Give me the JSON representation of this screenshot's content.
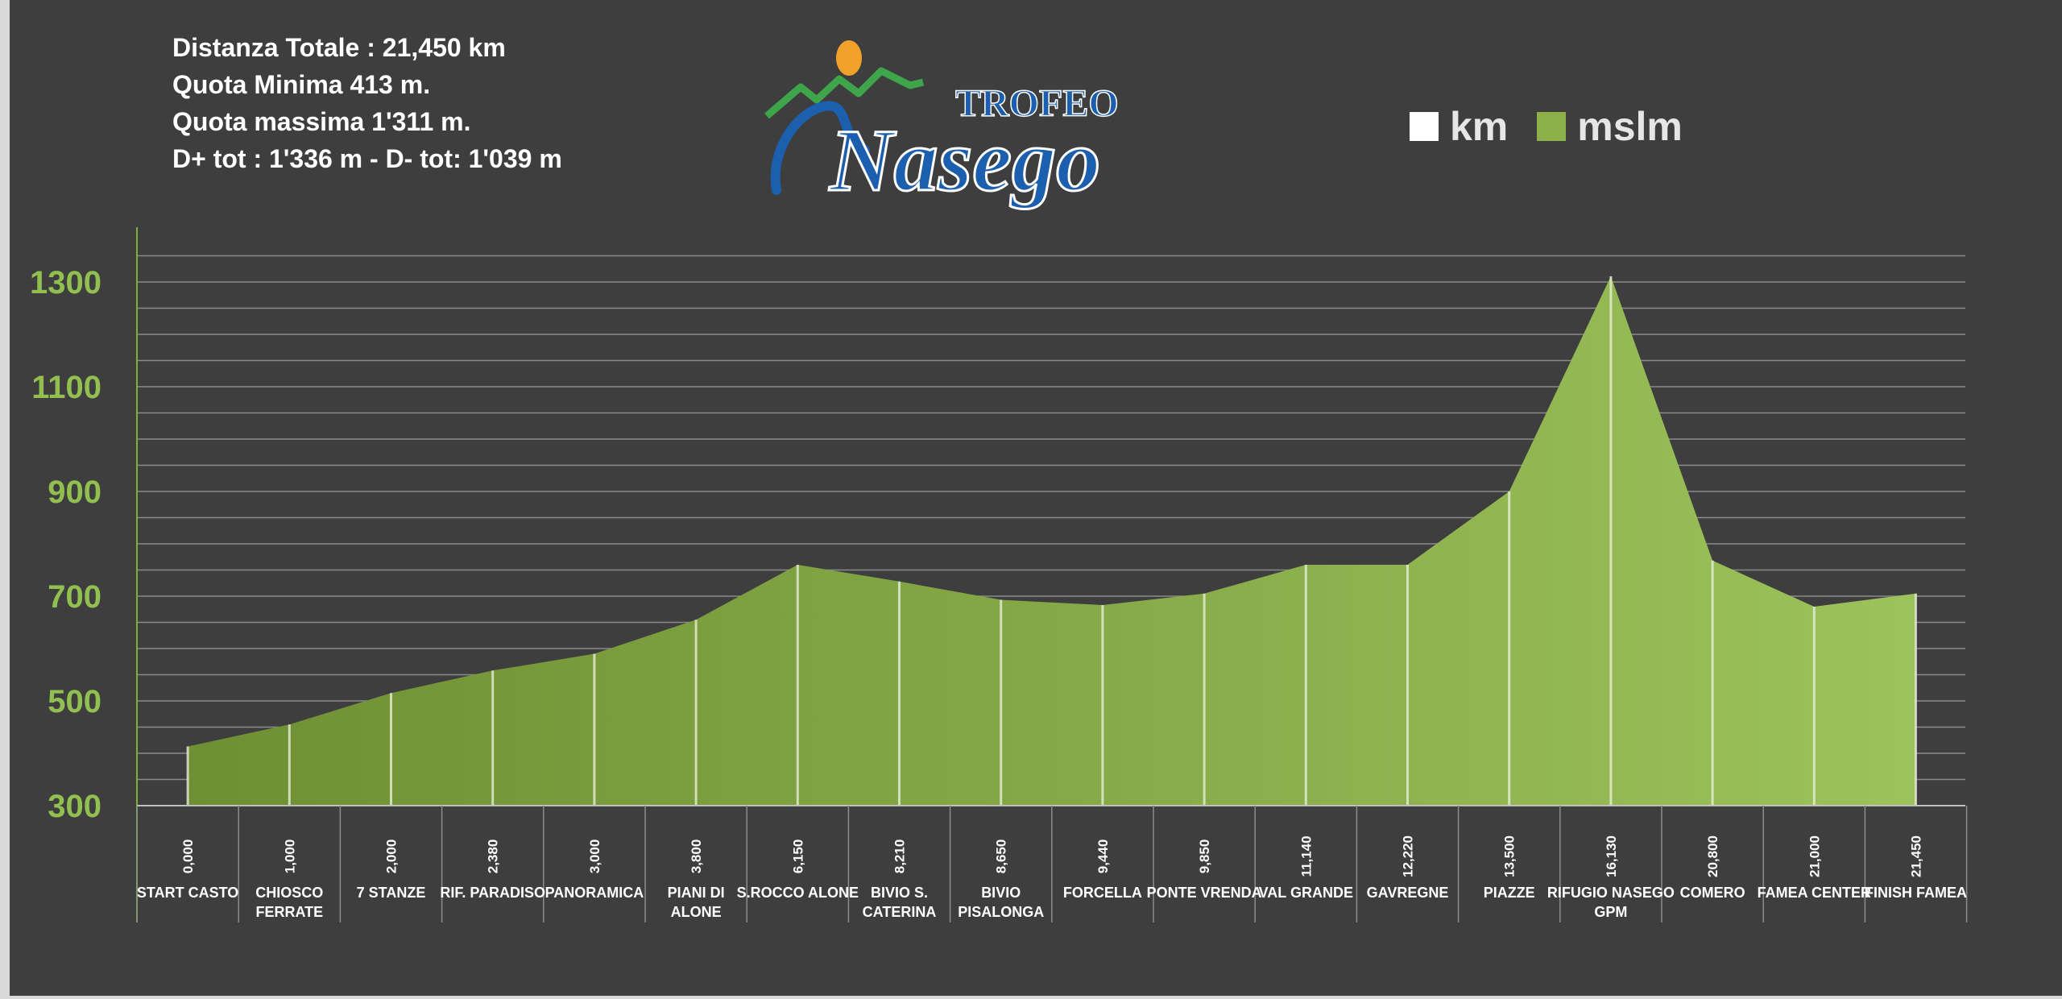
{
  "stats": [
    "Distanza Totale : 21,450 km",
    "Quota Minima 413 m.",
    "Quota massima 1'311 m.",
    "D+ tot : 1'336 m - D- tot: 1'039 m"
  ],
  "logo": {
    "line1": "TROFEO",
    "line2": "Nasego"
  },
  "legend": [
    {
      "name": "km",
      "color": "#ffffff"
    },
    {
      "name": "mslm",
      "color": "#8db048"
    }
  ],
  "chart_data": {
    "type": "area",
    "ylim": [
      300,
      1400
    ],
    "yticks": [
      300,
      500,
      700,
      900,
      1100,
      1300
    ],
    "grid": true,
    "legend": "top-right",
    "colors": {
      "fill_start": "#6e8f33",
      "fill_end": "#9cc25b",
      "axis_labels": "#92c050",
      "grid": "#8a8a8a"
    },
    "series": [
      {
        "name": "mslm",
        "values": [
          413,
          455,
          515,
          558,
          590,
          655,
          760,
          728,
          693,
          683,
          705,
          760,
          760,
          900,
          1311,
          768,
          680,
          705
        ]
      }
    ],
    "km_labels": [
      "0,000",
      "1,000",
      "2,000",
      "2,380",
      "3,000",
      "3,800",
      "6,150",
      "8,210",
      "8,650",
      "9,440",
      "9,850",
      "11,140",
      "12,220",
      "13,500",
      "16,130",
      "20,800",
      "21,000",
      "21,450"
    ],
    "categories": [
      "START CASTO",
      "CHIOSCO FERRATE",
      "7 STANZE",
      "RIF. PARADISO",
      "PANORAMICA",
      "PIANI DI ALONE",
      "S.ROCCO ALONE",
      "BIVIO S. CATERINA",
      "BIVIO PISALONGA",
      "FORCELLA",
      "PONTE VRENDA",
      "VAL GRANDE",
      "GAVREGNE",
      "PIAZZE",
      "RIFUGIO NASEGO GPM",
      "COMERO",
      "FAMEA CENTER",
      "FINISH FAMEA"
    ]
  }
}
